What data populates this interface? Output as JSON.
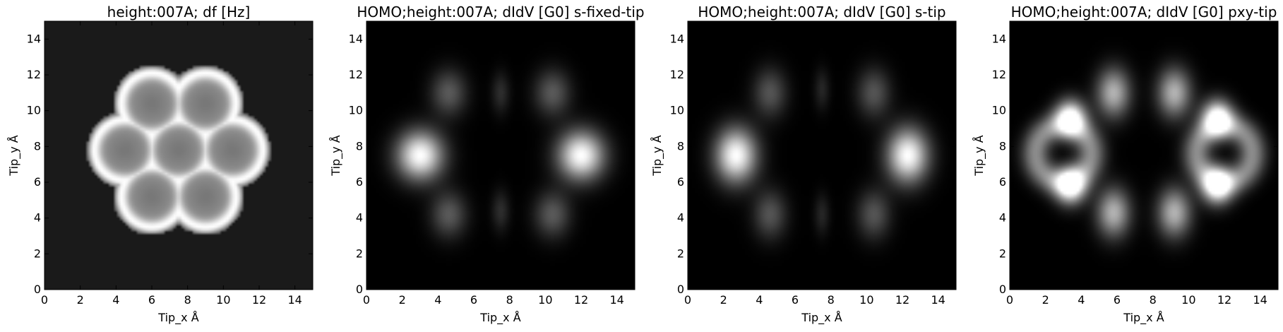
{
  "chart_data": [
    {
      "type": "heatmap",
      "title": "height:007A; df [Hz]",
      "xlabel": "Tip_x Å",
      "ylabel": "Tip_y Å",
      "xlim": [
        0,
        15
      ],
      "ylim": [
        0,
        15
      ],
      "xticks": [
        0,
        2,
        4,
        6,
        8,
        10,
        12,
        14
      ],
      "yticks": [
        0,
        2,
        4,
        6,
        8,
        10,
        12,
        14
      ],
      "colormap": "gray",
      "background_level": 0.1,
      "pattern": "seven hexagonal rings (coronene-like) with bright bonds and gray ring interiors",
      "features": [
        {
          "kind": "ring",
          "x": 6.0,
          "y": 10.4,
          "level": 0.55
        },
        {
          "kind": "ring",
          "x": 9.0,
          "y": 10.4,
          "level": 0.55
        },
        {
          "kind": "ring",
          "x": 4.5,
          "y": 7.8,
          "level": 0.55
        },
        {
          "kind": "ring",
          "x": 7.5,
          "y": 7.8,
          "level": 0.55
        },
        {
          "kind": "ring",
          "x": 10.5,
          "y": 7.8,
          "level": 0.55
        },
        {
          "kind": "ring",
          "x": 6.0,
          "y": 5.2,
          "level": 0.55
        },
        {
          "kind": "ring",
          "x": 9.0,
          "y": 5.2,
          "level": 0.55
        }
      ]
    },
    {
      "type": "heatmap",
      "title": "HOMO;height:007A; dIdV [G0] s-fixed-tip",
      "xlabel": "Tip_x Å",
      "ylabel": "Tip_y Å",
      "xlim": [
        0,
        15
      ],
      "ylim": [
        0,
        15
      ],
      "xticks": [
        0,
        2,
        4,
        6,
        8,
        10,
        12,
        14
      ],
      "yticks": [
        0,
        2,
        4,
        6,
        8,
        10,
        12,
        14
      ],
      "colormap": "gray",
      "background_level": 0.0,
      "features": [
        {
          "kind": "blob",
          "x": 3.0,
          "y": 7.5,
          "sx": 0.9,
          "sy": 0.95,
          "level": 1.0
        },
        {
          "kind": "blob",
          "x": 12.0,
          "y": 7.5,
          "sx": 0.9,
          "sy": 0.95,
          "level": 1.0
        },
        {
          "kind": "blob",
          "x": 4.6,
          "y": 11.0,
          "sx": 0.7,
          "sy": 0.9,
          "level": 0.35
        },
        {
          "kind": "blob",
          "x": 10.4,
          "y": 11.0,
          "sx": 0.7,
          "sy": 0.9,
          "level": 0.35
        },
        {
          "kind": "blob",
          "x": 4.6,
          "y": 4.2,
          "sx": 0.7,
          "sy": 0.9,
          "level": 0.35
        },
        {
          "kind": "blob",
          "x": 10.4,
          "y": 4.2,
          "sx": 0.7,
          "sy": 0.9,
          "level": 0.35
        },
        {
          "kind": "blob",
          "x": 7.5,
          "y": 11.0,
          "sx": 0.35,
          "sy": 0.8,
          "level": 0.18
        },
        {
          "kind": "blob",
          "x": 7.5,
          "y": 4.4,
          "sx": 0.35,
          "sy": 0.8,
          "level": 0.18
        }
      ]
    },
    {
      "type": "heatmap",
      "title": "HOMO;height:007A; dIdV [G0] s-tip",
      "xlabel": "Tip_x Å",
      "ylabel": "Tip_y Å",
      "xlim": [
        0,
        15
      ],
      "ylim": [
        0,
        15
      ],
      "xticks": [
        0,
        2,
        4,
        6,
        8,
        10,
        12,
        14
      ],
      "yticks": [
        0,
        2,
        4,
        6,
        8,
        10,
        12,
        14
      ],
      "colormap": "gray",
      "background_level": 0.0,
      "features": [
        {
          "kind": "blob",
          "x": 2.7,
          "y": 7.5,
          "sx": 0.8,
          "sy": 1.05,
          "level": 1.0
        },
        {
          "kind": "blob",
          "x": 12.3,
          "y": 7.5,
          "sx": 0.8,
          "sy": 1.05,
          "level": 1.0
        },
        {
          "kind": "blob",
          "x": 4.6,
          "y": 11.0,
          "sx": 0.65,
          "sy": 0.95,
          "level": 0.33
        },
        {
          "kind": "blob",
          "x": 10.4,
          "y": 11.0,
          "sx": 0.65,
          "sy": 0.95,
          "level": 0.33
        },
        {
          "kind": "blob",
          "x": 4.6,
          "y": 4.2,
          "sx": 0.65,
          "sy": 0.95,
          "level": 0.33
        },
        {
          "kind": "blob",
          "x": 10.4,
          "y": 4.2,
          "sx": 0.65,
          "sy": 0.95,
          "level": 0.33
        },
        {
          "kind": "blob",
          "x": 7.5,
          "y": 11.2,
          "sx": 0.3,
          "sy": 0.8,
          "level": 0.15
        },
        {
          "kind": "blob",
          "x": 7.5,
          "y": 4.2,
          "sx": 0.3,
          "sy": 0.8,
          "level": 0.15
        }
      ]
    },
    {
      "type": "heatmap",
      "title": "HOMO;height:007A; dIdV [G0] pxy-tip",
      "xlabel": "Tip_x Å",
      "ylabel": "Tip_y Å",
      "xlim": [
        0,
        15
      ],
      "ylim": [
        0,
        15
      ],
      "xticks": [
        0,
        2,
        4,
        6,
        8,
        10,
        12,
        14
      ],
      "yticks": [
        0,
        2,
        4,
        6,
        8,
        10,
        12,
        14
      ],
      "colormap": "gray",
      "background_level": 0.0,
      "features": [
        {
          "kind": "ring",
          "x": 3.0,
          "y": 7.6,
          "r": 1.55,
          "w": 0.55,
          "level": 0.55
        },
        {
          "kind": "ring",
          "x": 12.0,
          "y": 7.6,
          "r": 1.55,
          "w": 0.55,
          "level": 0.55
        },
        {
          "kind": "blob",
          "x": 3.4,
          "y": 9.6,
          "sx": 0.6,
          "sy": 0.7,
          "level": 1.0
        },
        {
          "kind": "blob",
          "x": 3.4,
          "y": 5.8,
          "sx": 0.6,
          "sy": 0.7,
          "level": 1.0
        },
        {
          "kind": "blob",
          "x": 11.6,
          "y": 9.6,
          "sx": 0.6,
          "sy": 0.7,
          "level": 1.0
        },
        {
          "kind": "blob",
          "x": 11.6,
          "y": 5.8,
          "sx": 0.6,
          "sy": 0.7,
          "level": 1.0
        },
        {
          "kind": "blob",
          "x": 5.8,
          "y": 11.0,
          "sx": 0.65,
          "sy": 0.95,
          "level": 0.7
        },
        {
          "kind": "blob",
          "x": 9.2,
          "y": 11.0,
          "sx": 0.65,
          "sy": 0.95,
          "level": 0.7
        },
        {
          "kind": "blob",
          "x": 5.8,
          "y": 4.3,
          "sx": 0.65,
          "sy": 0.95,
          "level": 0.7
        },
        {
          "kind": "blob",
          "x": 9.2,
          "y": 4.3,
          "sx": 0.65,
          "sy": 0.95,
          "level": 0.7
        }
      ]
    }
  ]
}
